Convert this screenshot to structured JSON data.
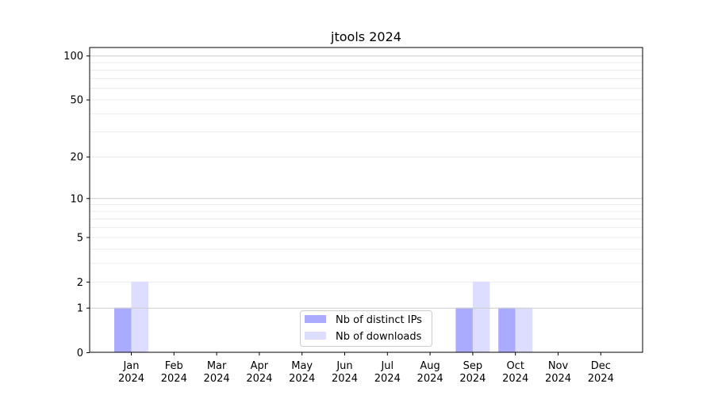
{
  "chart_data": {
    "type": "bar",
    "title": "jtools 2024",
    "xlabel": "",
    "ylabel": "",
    "yscale": "symlog (log of 1+y)",
    "ylim": [
      0,
      113
    ],
    "yticks": [
      0,
      1,
      2,
      5,
      10,
      20,
      50,
      100
    ],
    "grid": true,
    "legend_position": "lower-center",
    "categories": [
      "Jan\n2024",
      "Feb\n2024",
      "Mar\n2024",
      "Apr\n2024",
      "May\n2024",
      "Jun\n2024",
      "Jul\n2024",
      "Aug\n2024",
      "Sep\n2024",
      "Oct\n2024",
      "Nov\n2024",
      "Dec\n2024"
    ],
    "series": [
      {
        "name": "Nb of distinct IPs",
        "color": "#aaaaff",
        "values": [
          1,
          0,
          0,
          0,
          0,
          0,
          0,
          0,
          1,
          1,
          0,
          0
        ]
      },
      {
        "name": "Nb of downloads",
        "color": "#ddddff",
        "values": [
          2,
          0,
          0,
          0,
          0,
          0,
          0,
          0,
          2,
          1,
          0,
          0
        ]
      }
    ]
  }
}
